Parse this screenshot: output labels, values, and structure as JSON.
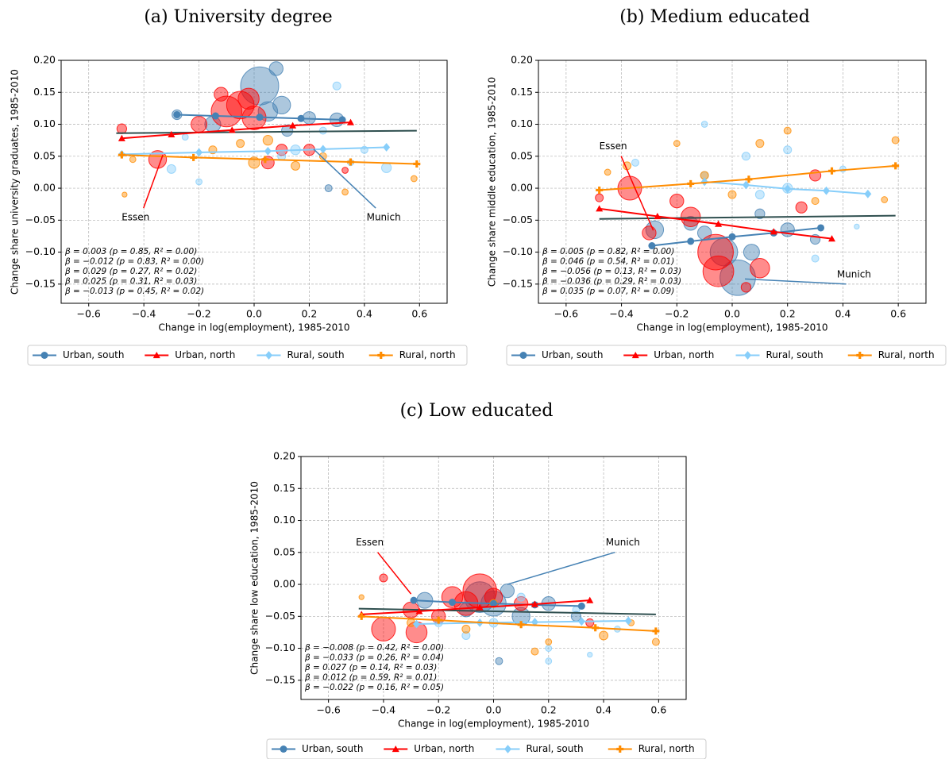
{
  "chart_data": [
    {
      "type": "scatter",
      "title": "(a) University degree",
      "x_label": "Change in log(employment), 1985-2010",
      "y_label": "Change share university graduates, 1985-2010",
      "xlim": [
        -0.7,
        0.7
      ],
      "ylim": [
        -0.18,
        0.2
      ],
      "grid": true,
      "xticks": [
        {
          "value": -0.6,
          "label": "−0.6"
        },
        {
          "value": -0.4,
          "label": "−0.4"
        },
        {
          "value": -0.2,
          "label": "−0.2"
        },
        {
          "value": 0,
          "label": "0.0"
        },
        {
          "value": 0.2,
          "label": "0.2"
        },
        {
          "value": 0.4,
          "label": "0.4"
        },
        {
          "value": 0.6,
          "label": "0.6"
        }
      ],
      "yticks": [
        {
          "value": -0.15,
          "label": "−0.15"
        },
        {
          "value": -0.1,
          "label": "−0.10"
        },
        {
          "value": -0.05,
          "label": "−0.05"
        },
        {
          "value": 0,
          "label": "0.00"
        },
        {
          "value": 0.05,
          "label": "0.05"
        },
        {
          "value": 0.1,
          "label": "0.10"
        },
        {
          "value": 0.15,
          "label": "0.15"
        },
        {
          "value": 0.2,
          "label": "0.20"
        }
      ],
      "overall_fit": {
        "color": "#2f4f4f",
        "x": [
          -0.5,
          0.59
        ],
        "y": [
          0.086,
          0.09
        ],
        "stat": "β = 0.003 (p = 0.85, R² = 0.00)"
      },
      "series": [
        {
          "name": "Urban, south",
          "color": "#4682b4",
          "marker": "circle",
          "x": [
            0.02,
            0.08,
            0.1,
            -0.15,
            0.3,
            0.2,
            -0.28,
            0.12,
            0.05,
            0.27
          ],
          "y": [
            0.16,
            0.187,
            0.13,
            0.1,
            0.107,
            0.11,
            0.115,
            0.09,
            0.12,
            0.0
          ],
          "size": [
            2300,
            300,
            500,
            400,
            300,
            250,
            150,
            200,
            600,
            80
          ],
          "fit_x": [
            -0.28,
            -0.14,
            0.02,
            0.17,
            0.32
          ],
          "fit_y": [
            0.115,
            0.113,
            0.111,
            0.109,
            0.107
          ],
          "stat": "β = −0.012 (p = 0.83, R² = 0.00)"
        },
        {
          "name": "Urban, north",
          "color": "#ff0000",
          "marker": "triangle",
          "x": [
            -0.1,
            -0.05,
            -0.02,
            0.0,
            -0.35,
            -0.2,
            0.1,
            -0.48,
            0.2,
            0.33,
            -0.12,
            0.05
          ],
          "y": [
            0.12,
            0.13,
            0.14,
            0.11,
            0.045,
            0.1,
            0.06,
            0.093,
            0.06,
            0.028,
            0.147,
            0.04
          ],
          "size": [
            1500,
            1200,
            700,
            900,
            500,
            400,
            200,
            150,
            200,
            60,
            300,
            250
          ],
          "fit_x": [
            -0.48,
            -0.3,
            -0.08,
            0.14,
            0.35
          ],
          "fit_y": [
            0.078,
            0.084,
            0.091,
            0.098,
            0.103
          ],
          "stat": "β = 0.029 (p = 0.27, R² = 0.02)"
        },
        {
          "name": "Rural, south",
          "color": "#87cefa",
          "marker": "diamond",
          "x": [
            0.3,
            0.48,
            -0.2,
            0.15,
            0.1,
            -0.3,
            0.4,
            -0.25,
            0.35,
            0.25
          ],
          "y": [
            0.16,
            0.032,
            0.01,
            0.06,
            0.05,
            0.03,
            0.06,
            0.08,
            0.04,
            0.09
          ],
          "size": [
            100,
            150,
            60,
            150,
            100,
            120,
            80,
            60,
            60,
            80
          ],
          "fit_x": [
            -0.48,
            -0.2,
            0.05,
            0.25,
            0.48
          ],
          "fit_y": [
            0.053,
            0.056,
            0.058,
            0.061,
            0.064
          ],
          "stat": "β = 0.025 (p = 0.31, R² = 0.03)"
        },
        {
          "name": "Rural, north",
          "color": "#ff8c00",
          "marker": "plus",
          "x": [
            -0.47,
            -0.44,
            0.0,
            0.05,
            -0.15,
            0.58,
            0.33,
            0.25,
            -0.05,
            0.15
          ],
          "y": [
            -0.01,
            0.045,
            0.04,
            0.075,
            0.06,
            0.015,
            -0.006,
            0.05,
            0.07,
            0.035
          ],
          "size": [
            40,
            60,
            200,
            150,
            100,
            60,
            60,
            80,
            100,
            120
          ],
          "fit_x": [
            -0.48,
            -0.22,
            0.04,
            0.35,
            0.59
          ],
          "fit_y": [
            0.052,
            0.048,
            0.045,
            0.041,
            0.038
          ],
          "stat": "β = −0.013 (p = 0.45, R² = 0.02)"
        }
      ],
      "annotations": [
        {
          "text": "Essen",
          "color": "#ff0000",
          "x": -0.43,
          "y": -0.046,
          "xy": [
            -0.331,
            0.052
          ]
        },
        {
          "text": "Munich",
          "color": "#4682b4",
          "x": 0.47,
          "y": -0.046,
          "xy": [
            0.216,
            0.061
          ]
        }
      ]
    },
    {
      "type": "scatter",
      "title": "(b) Medium educated",
      "x_label": "Change in log(employment), 1985-2010",
      "y_label": "Change share middle education, 1985-2010",
      "xlim": [
        -0.7,
        0.7
      ],
      "ylim": [
        -0.18,
        0.2
      ],
      "grid": true,
      "xticks": [
        {
          "value": -0.6,
          "label": "−0.6"
        },
        {
          "value": -0.4,
          "label": "−0.4"
        },
        {
          "value": -0.2,
          "label": "−0.2"
        },
        {
          "value": 0,
          "label": "0.0"
        },
        {
          "value": 0.2,
          "label": "0.2"
        },
        {
          "value": 0.4,
          "label": "0.4"
        },
        {
          "value": 0.6,
          "label": "0.6"
        }
      ],
      "yticks": [
        {
          "value": -0.15,
          "label": "−0.15"
        },
        {
          "value": -0.1,
          "label": "−0.10"
        },
        {
          "value": -0.05,
          "label": "−0.05"
        },
        {
          "value": 0,
          "label": "0.00"
        },
        {
          "value": 0.05,
          "label": "0.05"
        },
        {
          "value": 0.1,
          "label": "0.10"
        },
        {
          "value": 0.15,
          "label": "0.15"
        },
        {
          "value": 0.2,
          "label": "0.20"
        }
      ],
      "overall_fit": {
        "color": "#2f4f4f",
        "x": [
          -0.48,
          0.59
        ],
        "y": [
          -0.048,
          -0.043
        ],
        "stat": "β = 0.005 (p = 0.82, R² = 0.00)"
      },
      "series": [
        {
          "name": "Urban, south",
          "color": "#4682b4",
          "marker": "circle",
          "x": [
            0.02,
            -0.03,
            0.07,
            -0.28,
            -0.1,
            0.3,
            0.2,
            -0.15,
            0.1
          ],
          "y": [
            -0.14,
            -0.1,
            -0.1,
            -0.065,
            -0.07,
            -0.08,
            -0.065,
            -0.055,
            -0.04
          ],
          "size": [
            2000,
            1200,
            400,
            500,
            300,
            150,
            300,
            300,
            150
          ],
          "fit_x": [
            -0.29,
            -0.15,
            0.0,
            0.15,
            0.32
          ],
          "fit_y": [
            -0.09,
            -0.083,
            -0.076,
            -0.07,
            -0.062
          ],
          "stat": "β = 0.046 (p = 0.54, R² = 0.01)"
        },
        {
          "name": "Urban, north",
          "color": "#ff0000",
          "marker": "triangle",
          "x": [
            -0.06,
            -0.05,
            -0.37,
            -0.15,
            0.1,
            -0.2,
            0.25,
            0.3,
            -0.48,
            0.05,
            -0.3
          ],
          "y": [
            -0.1,
            -0.13,
            0.0,
            -0.045,
            -0.125,
            -0.02,
            -0.03,
            0.02,
            -0.015,
            -0.155,
            -0.07
          ],
          "size": [
            2000,
            1500,
            900,
            600,
            600,
            300,
            200,
            200,
            100,
            150,
            300
          ],
          "fit_x": [
            -0.48,
            -0.27,
            -0.05,
            0.15,
            0.36
          ],
          "fit_y": [
            -0.032,
            -0.044,
            -0.056,
            -0.068,
            -0.079
          ],
          "stat": "β = −0.056 (p = 0.13, R² = 0.03)"
        },
        {
          "name": "Rural, south",
          "color": "#87cefa",
          "marker": "diamond",
          "x": [
            -0.35,
            0.2,
            -0.1,
            0.45,
            0.3,
            0.05,
            0.2,
            -0.1,
            0.4,
            0.1
          ],
          "y": [
            0.04,
            0.06,
            0.1,
            -0.06,
            -0.11,
            0.05,
            0.0,
            0.02,
            0.03,
            -0.01
          ],
          "size": [
            80,
            100,
            60,
            40,
            80,
            100,
            150,
            100,
            60,
            120
          ],
          "fit_x": [
            -0.1,
            0.05,
            0.2,
            0.34,
            0.49
          ],
          "fit_y": [
            0.01,
            0.005,
            -0.001,
            -0.004,
            -0.009
          ],
          "stat": "β = −0.036 (p = 0.29, R² = 0.03)"
        },
        {
          "name": "Rural, north",
          "color": "#ff8c00",
          "marker": "plus",
          "x": [
            -0.45,
            0.59,
            0.55,
            0.2,
            -0.2,
            -0.1,
            0.1,
            -0.38,
            0.3,
            0.0
          ],
          "y": [
            0.025,
            0.075,
            -0.018,
            0.09,
            0.07,
            0.02,
            0.07,
            0.035,
            -0.02,
            -0.01
          ],
          "size": [
            60,
            80,
            60,
            80,
            60,
            100,
            100,
            100,
            80,
            100
          ],
          "fit_x": [
            -0.48,
            -0.15,
            0.06,
            0.36,
            0.59
          ],
          "fit_y": [
            -0.003,
            0.007,
            0.014,
            0.027,
            0.035
          ],
          "stat": "β = 0.035 (p = 0.07, R² = 0.09)"
        }
      ],
      "annotations": [
        {
          "text": "Essen",
          "color": "#ff0000",
          "x": -0.43,
          "y": 0.065,
          "xy": [
            -0.285,
            -0.066
          ]
        },
        {
          "text": "Munich",
          "color": "#4682b4",
          "x": 0.44,
          "y": -0.135,
          "xy": [
            0.046,
            -0.142
          ]
        }
      ]
    },
    {
      "type": "scatter",
      "title": "(c) Low educated",
      "x_label": "Change in log(employment), 1985-2010",
      "y_label": "Change share low education, 1985-2010",
      "xlim": [
        -0.7,
        0.7
      ],
      "ylim": [
        -0.18,
        0.2
      ],
      "grid": true,
      "xticks": [
        {
          "value": -0.6,
          "label": "−0.6"
        },
        {
          "value": -0.4,
          "label": "−0.4"
        },
        {
          "value": -0.2,
          "label": "−0.2"
        },
        {
          "value": 0,
          "label": "0.0"
        },
        {
          "value": 0.2,
          "label": "0.2"
        },
        {
          "value": 0.4,
          "label": "0.4"
        },
        {
          "value": 0.6,
          "label": "0.6"
        }
      ],
      "yticks": [
        {
          "value": -0.15,
          "label": "−0.15"
        },
        {
          "value": -0.1,
          "label": "−0.10"
        },
        {
          "value": -0.05,
          "label": "−0.05"
        },
        {
          "value": 0,
          "label": "0.00"
        },
        {
          "value": 0.05,
          "label": "0.05"
        },
        {
          "value": 0.1,
          "label": "0.10"
        },
        {
          "value": 0.15,
          "label": "0.15"
        },
        {
          "value": 0.2,
          "label": "0.20"
        }
      ],
      "overall_fit": {
        "color": "#2f4f4f",
        "x": [
          -0.49,
          0.59
        ],
        "y": [
          -0.038,
          -0.047
        ],
        "stat": "β = −0.008 (p = 0.42, R² = 0.00)"
      },
      "series": [
        {
          "name": "Urban, south",
          "color": "#4682b4",
          "marker": "circle",
          "x": [
            -0.05,
            0.0,
            0.1,
            -0.25,
            0.2,
            0.3,
            -0.1,
            0.05,
            0.02
          ],
          "y": [
            -0.02,
            -0.03,
            -0.05,
            -0.025,
            -0.03,
            -0.05,
            -0.04,
            -0.01,
            -0.12
          ],
          "size": [
            1500,
            1000,
            500,
            400,
            300,
            150,
            300,
            300,
            80
          ],
          "fit_x": [
            -0.29,
            -0.15,
            0.0,
            0.15,
            0.32
          ],
          "fit_y": [
            -0.025,
            -0.028,
            -0.03,
            -0.032,
            -0.034
          ],
          "stat": "β = −0.033 (p = 0.26, R² = 0.04)"
        },
        {
          "name": "Urban, north",
          "color": "#ff0000",
          "marker": "triangle",
          "x": [
            -0.05,
            -0.1,
            -0.15,
            -0.4,
            -0.28,
            0.0,
            0.1,
            -0.3,
            -0.4,
            0.35,
            -0.2
          ],
          "y": [
            -0.01,
            -0.03,
            -0.02,
            -0.07,
            -0.075,
            -0.02,
            -0.03,
            -0.04,
            0.01,
            -0.06,
            -0.05
          ],
          "size": [
            1800,
            900,
            700,
            900,
            700,
            500,
            300,
            400,
            100,
            100,
            300
          ],
          "fit_x": [
            -0.48,
            -0.27,
            -0.05,
            0.15,
            0.35
          ],
          "fit_y": [
            -0.047,
            -0.042,
            -0.036,
            -0.031,
            -0.025
          ],
          "stat": "β = 0.027 (p = 0.14, R² = 0.03)"
        },
        {
          "name": "Rural, south",
          "color": "#87cefa",
          "marker": "diamond",
          "x": [
            0.2,
            0.2,
            0.35,
            -0.1,
            0.0,
            0.3,
            0.1,
            -0.2,
            0.45
          ],
          "y": [
            -0.1,
            -0.12,
            -0.11,
            -0.08,
            -0.06,
            -0.04,
            -0.02,
            -0.06,
            -0.07
          ],
          "size": [
            60,
            60,
            40,
            100,
            120,
            80,
            100,
            100,
            60
          ],
          "fit_x": [
            -0.28,
            -0.05,
            0.15,
            0.32,
            0.49
          ],
          "fit_y": [
            -0.062,
            -0.06,
            -0.059,
            -0.058,
            -0.057
          ],
          "stat": "β = 0.012 (p = 0.59, R² = 0.01)"
        },
        {
          "name": "Rural, north",
          "color": "#ff8c00",
          "marker": "plus",
          "x": [
            -0.48,
            0.59,
            0.4,
            0.15,
            -0.1,
            0.2,
            -0.3,
            0.5,
            0.0
          ],
          "y": [
            -0.02,
            -0.09,
            -0.08,
            -0.105,
            -0.07,
            -0.09,
            -0.06,
            -0.06,
            -0.03
          ],
          "size": [
            40,
            80,
            120,
            80,
            100,
            60,
            100,
            60,
            100
          ],
          "fit_x": [
            -0.48,
            -0.2,
            0.1,
            0.37,
            0.59
          ],
          "fit_y": [
            -0.05,
            -0.056,
            -0.063,
            -0.068,
            -0.073
          ],
          "stat": "β = −0.022 (p = 0.16, R² = 0.05)"
        }
      ],
      "annotations": [
        {
          "text": "Essen",
          "color": "#ff0000",
          "x": -0.45,
          "y": 0.065,
          "xy": [
            -0.3,
            -0.015
          ]
        },
        {
          "text": "Munich",
          "color": "#4682b4",
          "x": 0.47,
          "y": 0.065,
          "xy": [
            0.05,
            0.0
          ]
        }
      ]
    }
  ]
}
